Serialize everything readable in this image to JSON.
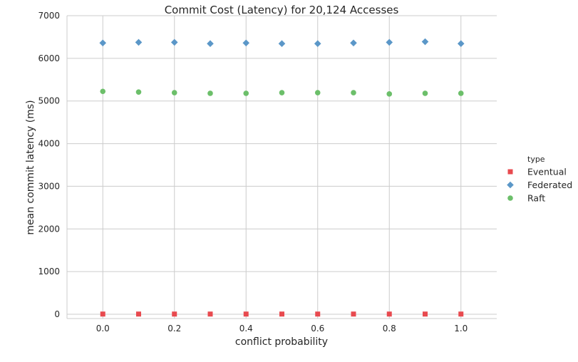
{
  "chart_data": {
    "type": "scatter",
    "title": "Commit Cost (Latency) for 20,124 Accesses",
    "xlabel": "conflict probability",
    "ylabel": "mean commit latency (ms)",
    "xlim": [
      -0.1,
      1.1
    ],
    "ylim": [
      -100,
      7000
    ],
    "xticks": [
      0.0,
      0.2,
      0.4,
      0.6,
      0.8,
      1.0
    ],
    "xtick_labels": [
      "0.0",
      "0.2",
      "0.4",
      "0.6",
      "0.8",
      "1.0"
    ],
    "yticks": [
      0,
      1000,
      2000,
      3000,
      4000,
      5000,
      6000,
      7000
    ],
    "ytick_labels": [
      "0",
      "1000",
      "2000",
      "3000",
      "4000",
      "5000",
      "6000",
      "7000"
    ],
    "grid": true,
    "legend": {
      "title": "type",
      "position": "right"
    },
    "x": [
      0.0,
      0.1,
      0.2,
      0.3,
      0.4,
      0.5,
      0.6,
      0.7,
      0.8,
      0.9,
      1.0
    ],
    "series": [
      {
        "name": "Eventual",
        "marker": "square",
        "color": "#e84a4f",
        "values": [
          5,
          5,
          5,
          5,
          5,
          5,
          5,
          5,
          5,
          5,
          5
        ]
      },
      {
        "name": "Federated",
        "marker": "diamond",
        "color": "#5b97c8",
        "values": [
          6360,
          6375,
          6375,
          6345,
          6360,
          6345,
          6345,
          6360,
          6375,
          6390,
          6345
        ]
      },
      {
        "name": "Raft",
        "marker": "circle",
        "color": "#6cbf6a",
        "values": [
          5225,
          5210,
          5195,
          5180,
          5180,
          5195,
          5195,
          5195,
          5165,
          5180,
          5180
        ]
      }
    ]
  }
}
